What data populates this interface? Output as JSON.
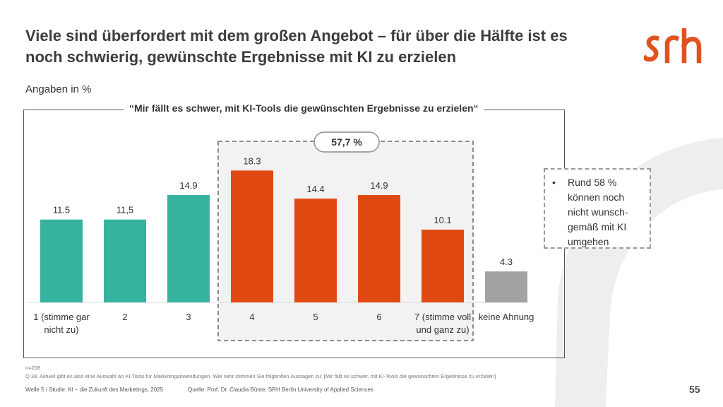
{
  "title": "Viele sind überfordert mit dem großen Angebot – für über die Hälfte ist es noch schwierig, gewünschte Ergebnisse mit KI zu erzielen",
  "logo_text": "srh",
  "unit_label": "Angaben in %",
  "frame_title": "“Mir fällt es schwer, mit KI-Tools die gewünschten Ergebnisse zu erzielen“",
  "highlight_badge": "57,7 %",
  "note": {
    "bullet": "•",
    "text": "Rund 58 % können noch nicht wunsch-gemäß mit KI umgehen"
  },
  "footer": {
    "n": "n=208",
    "question": "Q 38. Aktuell gibt es also eine Auswahl an KI-Tools für Marketinganwendungen. Wie sehr stimmen Sie folgenden Aussagen zu: [Mir fällt es schwer, mit KI-Tools die gewünschten Ergebnisse zu erzielen]",
    "wave": "Welle 5 / Studie: KI – die Zukunft des Marketings, 2025",
    "source": "Quelle: Prof. Dr. Claudia Bünte, SRH Berlin University of Applied Sciences"
  },
  "page_number": "55",
  "colors": {
    "teal": "#36b39e",
    "orange": "#e04a12",
    "gray": "#a3a3a3",
    "logo": "#e0531f",
    "background_arc": "#f0eeec"
  },
  "chart_data": {
    "type": "bar",
    "categories": [
      "1 (stimme gar nicht zu)",
      "2",
      "3",
      "4",
      "5",
      "6",
      "7 (stimme voll und ganz zu)",
      "keine Ahnung"
    ],
    "values": [
      11.5,
      11.5,
      14.9,
      18.3,
      14.4,
      14.9,
      10.1,
      4.3
    ],
    "data_labels": [
      "11.5",
      "11,5",
      "14.9",
      "18.3",
      "14.4",
      "14.9",
      "10.1",
      "4.3"
    ],
    "category_lines": [
      [
        "1 (stimme gar",
        "nicht zu)"
      ],
      [
        "2"
      ],
      [
        "3"
      ],
      [
        "4"
      ],
      [
        "5"
      ],
      [
        "6"
      ],
      [
        "7 (stimme voll",
        "und ganz zu)"
      ],
      [
        "keine Ahnung"
      ]
    ],
    "bar_color_keys": [
      "teal",
      "teal",
      "teal",
      "orange",
      "orange",
      "orange",
      "orange",
      "gray"
    ],
    "highlighted_categories": [
      "4",
      "5",
      "6",
      "7 (stimme voll und ganz zu)"
    ],
    "ylim": [
      0,
      20
    ],
    "grid": false,
    "legend": "none"
  }
}
